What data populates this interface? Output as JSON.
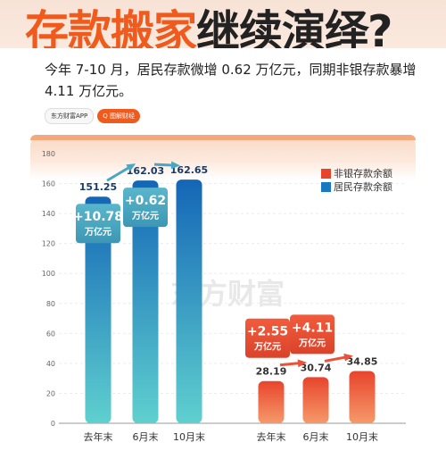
{
  "header": {
    "title_part1": "存款搬家",
    "title_part2": "继续演绎?",
    "subtitle": "今年 7-10 月，居民存款微增 0.62 万亿元，同期非银存款暴增 4.11 万亿元。",
    "brand_name": "东方财富APP",
    "brand_tag": "Q 图解财经"
  },
  "watermark": "东方财富",
  "chart_data": {
    "type": "bar",
    "ylim": [
      0,
      180
    ],
    "yticks": [
      0,
      20,
      40,
      60,
      80,
      100,
      120,
      140,
      160,
      180
    ],
    "grid": true,
    "legend_position": "top-right",
    "series": [
      {
        "name": "居民存款余额",
        "color": "#1a78c2",
        "categories": [
          "去年末",
          "6月末",
          "10月末"
        ],
        "values": [
          151.25,
          162.03,
          162.65
        ],
        "value_labels": [
          "151.25",
          "162.03",
          "162.65"
        ]
      },
      {
        "name": "非银存款余额",
        "color": "#e8442c",
        "categories": [
          "去年末",
          "6月末",
          "10月末"
        ],
        "values": [
          28.19,
          30.74,
          34.85
        ],
        "value_labels": [
          "28.19",
          "30.74",
          "34.85"
        ]
      }
    ],
    "legend": [
      "非银存款余额",
      "居民存款余额"
    ],
    "annotations": [
      {
        "group": 0,
        "between": [
          0,
          1
        ],
        "label": "+10.78",
        "unit": "万亿元"
      },
      {
        "group": 0,
        "between": [
          1,
          2
        ],
        "label": "+0.62",
        "unit": "万亿元"
      },
      {
        "group": 1,
        "between": [
          0,
          1
        ],
        "label": "+2.55",
        "unit": "万亿元"
      },
      {
        "group": 1,
        "between": [
          1,
          2
        ],
        "label": "+4.11",
        "unit": "万亿元"
      }
    ]
  }
}
